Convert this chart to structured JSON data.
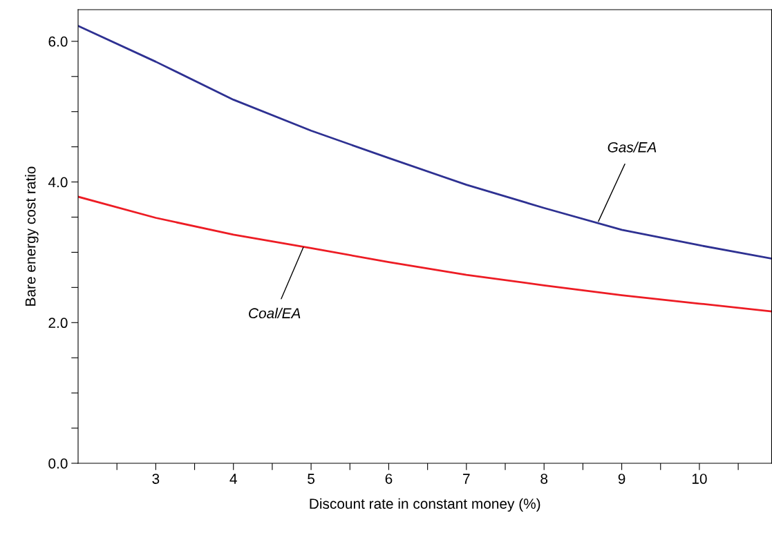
{
  "chart_data": {
    "type": "line",
    "xlabel": "Discount rate in constant money (%)",
    "ylabel": "Bare energy cost ratio",
    "x": [
      2,
      3,
      4,
      5,
      6,
      7,
      8,
      9,
      10,
      10.93
    ],
    "series": [
      {
        "color": "#2e3192",
        "values": [
          6.22,
          5.71,
          5.17,
          4.73,
          4.34,
          3.96,
          3.63,
          3.32,
          3.1,
          2.91
        ]
      },
      {
        "color": "#ed1c24",
        "values": [
          3.79,
          3.49,
          3.25,
          3.06,
          2.86,
          2.68,
          2.53,
          2.39,
          2.27,
          2.16
        ]
      }
    ],
    "annotations": [
      {
        "text": "Gas/EA",
        "x": 8.7,
        "y": 3.44
      },
      {
        "text": "Coal/EA",
        "x": 4.9,
        "y": 3.07
      }
    ],
    "xlim": [
      2,
      10.93
    ],
    "ylim": [
      0,
      6.45
    ],
    "xticks": [
      {
        "value": 2.5,
        "label": null
      },
      3,
      {
        "value": 3.5,
        "label": null
      },
      4,
      {
        "value": 4.5,
        "label": null
      },
      5,
      {
        "value": 5.5,
        "label": null
      },
      6,
      {
        "value": 6.5,
        "label": null
      },
      7,
      {
        "value": 7.5,
        "label": null
      },
      8,
      {
        "value": 8.5,
        "label": null
      },
      9,
      {
        "value": 9.5,
        "label": null
      },
      10,
      {
        "value": 10.5,
        "label": null
      }
    ],
    "yticks": [
      {
        "value": 0,
        "label": "0.0"
      },
      {
        "value": 0.5,
        "label": null
      },
      {
        "value": 1,
        "label": null
      },
      {
        "value": 1.5,
        "label": null
      },
      {
        "value": 2,
        "label": "2.0"
      },
      {
        "value": 2.5,
        "label": null
      },
      {
        "value": 3,
        "label": null
      },
      {
        "value": 3.5,
        "label": null
      },
      {
        "value": 4,
        "label": "4.0"
      },
      {
        "value": 4.5,
        "label": null
      },
      {
        "value": 5,
        "label": null
      },
      {
        "value": 5.5,
        "label": null
      },
      {
        "value": 6,
        "label": "6.0"
      }
    ],
    "grid": false,
    "legend": false,
    "marker": "none",
    "line_style": "solid"
  }
}
